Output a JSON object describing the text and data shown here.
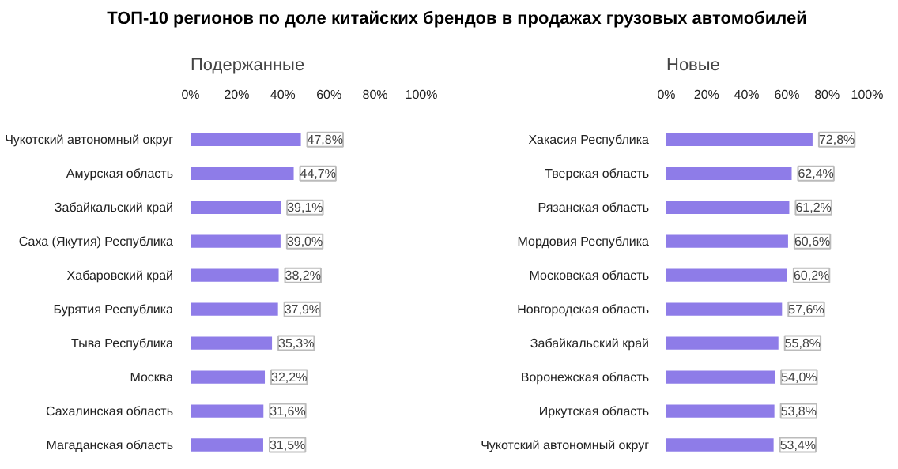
{
  "chart_data": [
    {
      "type": "bar",
      "orientation": "horizontal",
      "title": "ТОП-10 регионов по доле китайских брендов в продажах грузовых автомобилей",
      "subtitle": "Подержанные",
      "categories": [
        "Чукотский автономный округ",
        "Амурская область",
        "Забайкальский край",
        "Саха (Якутия) Республика",
        "Хабаровский край",
        "Бурятия Республика",
        "Тыва Республика",
        "Москва",
        "Сахалинская область",
        "Магаданская область"
      ],
      "values": [
        47.8,
        44.7,
        39.1,
        39.0,
        38.2,
        37.9,
        35.3,
        32.2,
        31.6,
        31.5
      ],
      "value_labels": [
        "47,8%",
        "44,7%",
        "39,1%",
        "39,0%",
        "38,2%",
        "37,9%",
        "35,3%",
        "32,2%",
        "31,6%",
        "31,5%"
      ],
      "color": "#8e7ce8",
      "xlim": [
        0,
        100
      ],
      "xticks": [
        {
          "value": 0,
          "label": "0%"
        },
        {
          "value": 20,
          "label": "20%"
        },
        {
          "value": 40,
          "label": "40%"
        },
        {
          "value": 60,
          "label": "60%"
        },
        {
          "value": 80,
          "label": "80%"
        },
        {
          "value": 100,
          "label": "100%"
        }
      ]
    },
    {
      "type": "bar",
      "orientation": "horizontal",
      "subtitle": "Новые",
      "categories": [
        "Хакасия Республика",
        "Тверская область",
        "Рязанская область",
        "Мордовия Республика",
        "Московская область",
        "Новгородская область",
        "Забайкальский край",
        "Воронежская область",
        "Иркутская область",
        "Чукотский автономный округ"
      ],
      "values": [
        72.8,
        62.4,
        61.2,
        60.6,
        60.2,
        57.6,
        55.8,
        54.0,
        53.8,
        53.4
      ],
      "value_labels": [
        "72,8%",
        "62,4%",
        "61,2%",
        "60,6%",
        "60,2%",
        "57,6%",
        "55,8%",
        "54,0%",
        "53,8%",
        "53,4%"
      ],
      "color": "#8e7ce8",
      "xlim": [
        0,
        100
      ],
      "xticks": [
        {
          "value": 0,
          "label": "0%"
        },
        {
          "value": 20,
          "label": "20%"
        },
        {
          "value": 40,
          "label": "40%"
        },
        {
          "value": 60,
          "label": "60%"
        },
        {
          "value": 80,
          "label": "80%"
        },
        {
          "value": 100,
          "label": "100%"
        }
      ]
    }
  ]
}
